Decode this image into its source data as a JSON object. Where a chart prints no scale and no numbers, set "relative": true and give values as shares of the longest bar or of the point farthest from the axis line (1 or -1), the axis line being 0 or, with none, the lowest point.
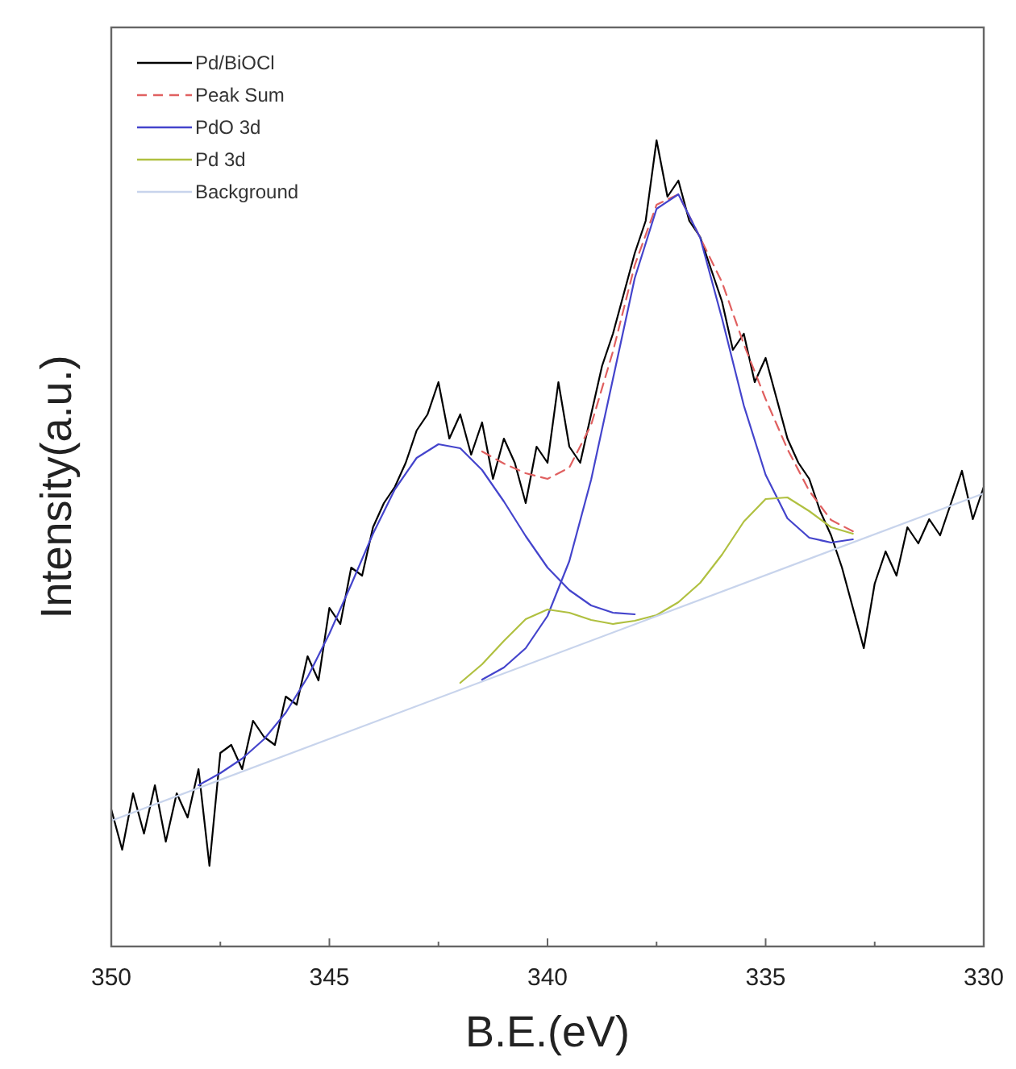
{
  "chart_data": {
    "type": "line",
    "xlabel": "B.E.(eV)",
    "ylabel": "Intensity(a.u.)",
    "relative": true,
    "legend": "top left",
    "tick_labels": "x",
    "xlim": [
      350,
      330
    ],
    "xticks": [
      350,
      {
        "value": 347.5,
        "label": null
      },
      345,
      {
        "value": 342.5,
        "label": null
      },
      340,
      {
        "value": 337.5,
        "label": null
      },
      335,
      {
        "value": 332.5,
        "label": null
      },
      330
    ],
    "series": [
      {
        "name": "Pd/BiOCl",
        "color": "#000000",
        "x": [
          350,
          349.75,
          349.5,
          349.25,
          349,
          348.75,
          348.5,
          348.25,
          348,
          347.75,
          347.5,
          347.25,
          347,
          346.75,
          346.5,
          346.25,
          346,
          345.75,
          345.5,
          345.25,
          345,
          344.75,
          344.5,
          344.25,
          344,
          343.75,
          343.5,
          343.25,
          343,
          342.75,
          342.5,
          342.25,
          342,
          341.75,
          341.5,
          341.25,
          341,
          340.75,
          340.5,
          340.25,
          340,
          339.75,
          339.5,
          339.25,
          339,
          338.75,
          338.5,
          338.25,
          338,
          337.75,
          337.5,
          337.25,
          337,
          336.75,
          336.5,
          336.25,
          336,
          335.75,
          335.5,
          335.25,
          335,
          334.75,
          334.5,
          334.25,
          334,
          333.75,
          333.5,
          333.25,
          333,
          332.75,
          332.5,
          332.25,
          332,
          331.75,
          331.5,
          331.25,
          331,
          330.75,
          330.5,
          330.25,
          330
        ],
        "values": [
          0.17,
          0.12,
          0.19,
          0.14,
          0.2,
          0.13,
          0.19,
          0.16,
          0.22,
          0.1,
          0.24,
          0.25,
          0.22,
          0.28,
          0.26,
          0.25,
          0.31,
          0.3,
          0.36,
          0.33,
          0.42,
          0.4,
          0.47,
          0.46,
          0.52,
          0.55,
          0.57,
          0.6,
          0.64,
          0.66,
          0.7,
          0.63,
          0.66,
          0.61,
          0.65,
          0.58,
          0.63,
          0.6,
          0.55,
          0.62,
          0.6,
          0.7,
          0.62,
          0.6,
          0.66,
          0.72,
          0.76,
          0.81,
          0.86,
          0.9,
          1.0,
          0.93,
          0.95,
          0.9,
          0.88,
          0.84,
          0.8,
          0.74,
          0.76,
          0.7,
          0.73,
          0.68,
          0.63,
          0.6,
          0.58,
          0.54,
          0.51,
          0.47,
          0.42,
          0.37,
          0.45,
          0.49,
          0.46,
          0.52,
          0.5,
          0.53,
          0.51,
          0.55,
          0.59,
          0.53,
          0.57
        ]
      },
      {
        "name": "Peak Sum",
        "color": "#e06060",
        "line_style": "dashed",
        "x": [
          341.5,
          341,
          340.5,
          340,
          339.5,
          339,
          338.5,
          338,
          337.5,
          337,
          336.5,
          336,
          335.5,
          335,
          334.5,
          334,
          333.5,
          333
        ],
        "values": [
          0.614,
          0.599,
          0.587,
          0.58,
          0.594,
          0.647,
          0.738,
          0.845,
          0.92,
          0.933,
          0.879,
          0.824,
          0.747,
          0.679,
          0.617,
          0.565,
          0.529,
          0.515
        ]
      },
      {
        "name": "PdO 3d",
        "color": "#4444cc",
        "x": [
          348,
          347.5,
          347,
          346.5,
          346,
          345.5,
          345,
          344.5,
          344,
          343.5,
          343,
          342.5,
          342,
          341.5,
          341,
          340.5,
          340,
          339.5,
          339,
          338.5,
          338
        ],
        "values": [
          0.2,
          0.215,
          0.233,
          0.257,
          0.29,
          0.334,
          0.388,
          0.449,
          0.512,
          0.567,
          0.606,
          0.623,
          0.618,
          0.591,
          0.552,
          0.509,
          0.47,
          0.442,
          0.423,
          0.414,
          0.412
        ]
      },
      {
        "color": "#4444cc",
        "x": [
          341.5,
          341,
          340.5,
          340,
          339.5,
          339,
          338.5,
          338,
          337.5,
          337,
          336.5,
          336,
          335.5,
          335,
          334.5,
          334,
          333.5,
          333
        ],
        "values": [
          0.331,
          0.346,
          0.37,
          0.41,
          0.478,
          0.579,
          0.704,
          0.829,
          0.915,
          0.933,
          0.879,
          0.779,
          0.671,
          0.585,
          0.531,
          0.507,
          0.501,
          0.505
        ]
      },
      {
        "name": "Pd 3d",
        "color": "#b0c040",
        "x": [
          342,
          341.5,
          341,
          340.5,
          340,
          339.5,
          339,
          338.5,
          338,
          337.5,
          337,
          336.5,
          336,
          335.5,
          335,
          334.5,
          334,
          333.5,
          333
        ],
        "values": [
          0.327,
          0.35,
          0.379,
          0.406,
          0.418,
          0.414,
          0.405,
          0.4,
          0.404,
          0.411,
          0.427,
          0.451,
          0.486,
          0.527,
          0.555,
          0.557,
          0.54,
          0.52,
          0.512
        ]
      },
      {
        "name": "Background",
        "color": "#c8d4ec",
        "x": [
          350,
          330
        ],
        "values": [
          0.156,
          0.562
        ]
      }
    ]
  }
}
